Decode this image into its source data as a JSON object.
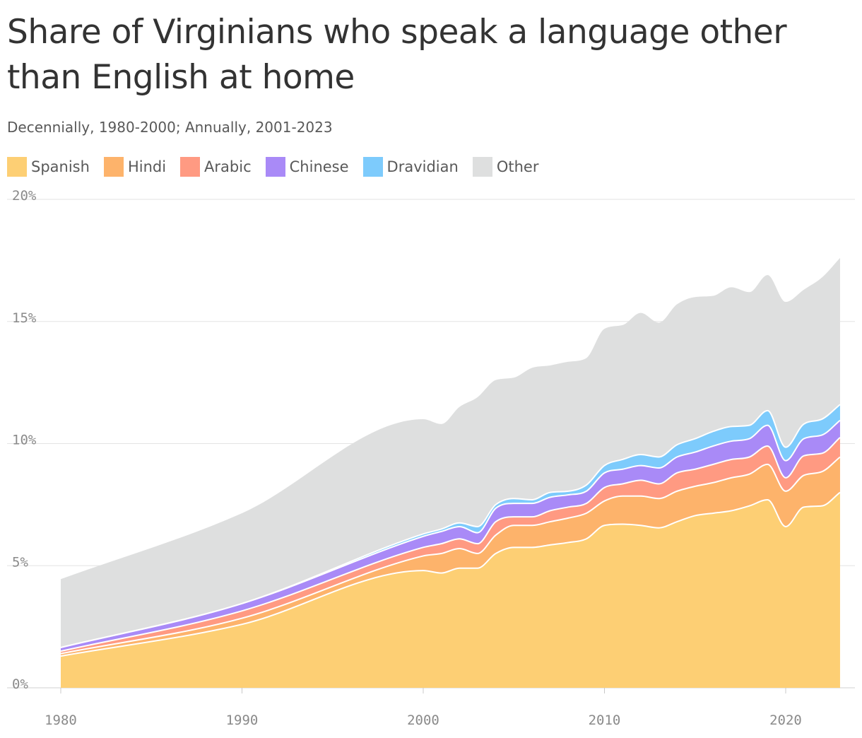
{
  "title": "Share of Virginians who speak a language other than English at home",
  "subtitle": "Decennially, 1980-2000; Annually, 2001-2023",
  "colors": {
    "Spanish": "#fdcf74",
    "Hindi": "#fdb36b",
    "Arabic": "#ff9a82",
    "Chinese": "#a98af7",
    "Dravidian": "#7dcbfc",
    "Other": "#dedfdf"
  },
  "chart_data": {
    "type": "area",
    "stacked": true,
    "title": "Share of Virginians who speak a language other than English at home",
    "subtitle": "Decennially, 1980-2000; Annually, 2001-2023",
    "xlabel": "",
    "ylabel": "",
    "xlim": [
      1980,
      2024
    ],
    "ylim": [
      0,
      20
    ],
    "y_ticks": [
      0,
      5,
      10,
      15,
      20
    ],
    "y_tick_labels": [
      "0%",
      "5%",
      "10%",
      "15%",
      "20%"
    ],
    "x_ticks": [
      1980,
      1990,
      2000,
      2010,
      2020
    ],
    "x_tick_labels": [
      "1980",
      "1990",
      "2000",
      "2010",
      "2020"
    ],
    "grid": "horizontal",
    "legend_position": "top-left",
    "x": [
      1980,
      1990,
      2000,
      2001,
      2002,
      2003,
      2004,
      2005,
      2006,
      2007,
      2008,
      2009,
      2010,
      2011,
      2012,
      2013,
      2014,
      2015,
      2016,
      2017,
      2018,
      2019,
      2020,
      2021,
      2022,
      2023
    ],
    "series": [
      {
        "name": "Spanish",
        "values": [
          1.3,
          2.6,
          4.8,
          4.7,
          4.9,
          4.9,
          5.5,
          5.75,
          5.75,
          5.85,
          5.95,
          6.1,
          6.65,
          6.7,
          6.65,
          6.55,
          6.8,
          7.05,
          7.15,
          7.25,
          7.45,
          7.7,
          6.6,
          7.4,
          7.45,
          8.0
        ]
      },
      {
        "name": "Hindi",
        "values": [
          0.1,
          0.25,
          0.6,
          0.8,
          0.8,
          0.6,
          0.75,
          0.9,
          0.9,
          0.95,
          1.0,
          1.05,
          1.0,
          1.15,
          1.2,
          1.2,
          1.25,
          1.2,
          1.25,
          1.35,
          1.3,
          1.45,
          1.45,
          1.3,
          1.4,
          1.45
        ]
      },
      {
        "name": "Arabic",
        "values": [
          0.1,
          0.3,
          0.35,
          0.4,
          0.4,
          0.4,
          0.55,
          0.35,
          0.35,
          0.45,
          0.45,
          0.4,
          0.55,
          0.5,
          0.65,
          0.6,
          0.75,
          0.7,
          0.75,
          0.75,
          0.7,
          0.75,
          0.55,
          0.8,
          0.75,
          0.8
        ]
      },
      {
        "name": "Chinese",
        "values": [
          0.15,
          0.3,
          0.45,
          0.5,
          0.5,
          0.45,
          0.55,
          0.55,
          0.55,
          0.55,
          0.5,
          0.5,
          0.6,
          0.6,
          0.6,
          0.65,
          0.65,
          0.7,
          0.75,
          0.75,
          0.75,
          0.85,
          0.7,
          0.7,
          0.75,
          0.7
        ]
      },
      {
        "name": "Dravidian",
        "values": [
          0.0,
          0.0,
          0.1,
          0.1,
          0.15,
          0.25,
          0.15,
          0.2,
          0.15,
          0.2,
          0.15,
          0.25,
          0.3,
          0.4,
          0.45,
          0.45,
          0.5,
          0.55,
          0.6,
          0.6,
          0.55,
          0.6,
          0.55,
          0.6,
          0.65,
          0.65
        ]
      },
      {
        "name": "Other",
        "values": [
          2.8,
          3.7,
          4.7,
          4.3,
          4.75,
          5.3,
          5.1,
          4.95,
          5.4,
          5.2,
          5.3,
          5.2,
          5.6,
          5.5,
          5.8,
          5.5,
          5.75,
          5.8,
          5.55,
          5.7,
          5.45,
          5.55,
          5.95,
          5.5,
          5.8,
          6.0
        ]
      }
    ]
  }
}
